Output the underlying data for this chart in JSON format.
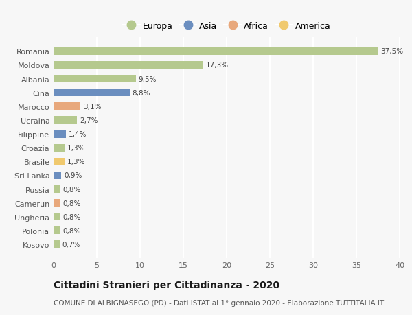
{
  "categories": [
    "Romania",
    "Moldova",
    "Albania",
    "Cina",
    "Marocco",
    "Ucraina",
    "Filippine",
    "Croazia",
    "Brasile",
    "Sri Lanka",
    "Russia",
    "Camerun",
    "Ungheria",
    "Polonia",
    "Kosovo"
  ],
  "values": [
    37.5,
    17.3,
    9.5,
    8.8,
    3.1,
    2.7,
    1.4,
    1.3,
    1.3,
    0.9,
    0.8,
    0.8,
    0.8,
    0.8,
    0.7
  ],
  "labels": [
    "37,5%",
    "17,3%",
    "9,5%",
    "8,8%",
    "3,1%",
    "2,7%",
    "1,4%",
    "1,3%",
    "1,3%",
    "0,9%",
    "0,8%",
    "0,8%",
    "0,8%",
    "0,8%",
    "0,7%"
  ],
  "continents": [
    "Europa",
    "Europa",
    "Europa",
    "Asia",
    "Africa",
    "Europa",
    "Asia",
    "Europa",
    "America",
    "Asia",
    "Europa",
    "Africa",
    "Europa",
    "Europa",
    "Europa"
  ],
  "colors": {
    "Europa": "#b5c98e",
    "Asia": "#6b8ebf",
    "Africa": "#e8a87c",
    "America": "#f0c96e"
  },
  "legend_order": [
    "Europa",
    "Asia",
    "Africa",
    "America"
  ],
  "title": "Cittadini Stranieri per Cittadinanza - 2020",
  "subtitle": "COMUNE DI ALBIGNASEGO (PD) - Dati ISTAT al 1° gennaio 2020 - Elaborazione TUTTITALIA.IT",
  "xlim": [
    0,
    40
  ],
  "xticks": [
    0,
    5,
    10,
    15,
    20,
    25,
    30,
    35,
    40
  ],
  "background_color": "#f7f7f7",
  "grid_color": "#ffffff",
  "bar_height": 0.55,
  "title_fontsize": 10,
  "subtitle_fontsize": 7.5,
  "label_fontsize": 7.5,
  "tick_fontsize": 8,
  "legend_fontsize": 9
}
